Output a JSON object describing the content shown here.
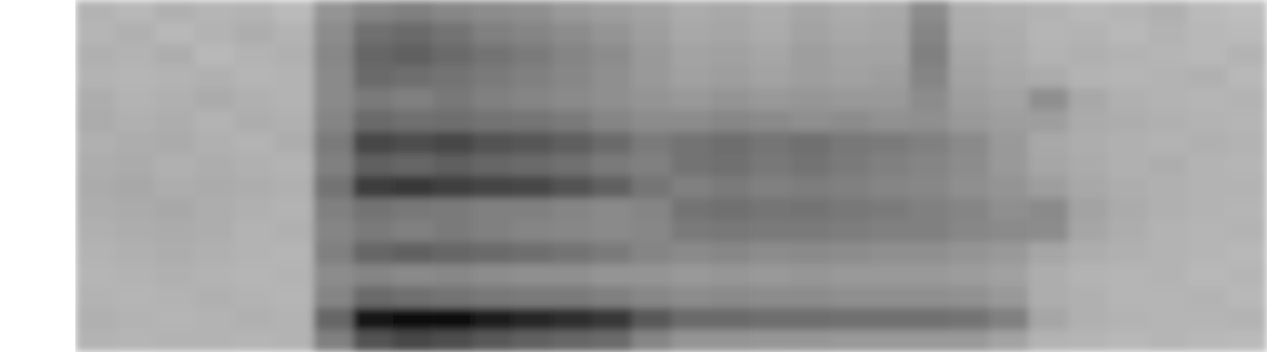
{
  "chart_data": {
    "type": "heatmap",
    "tick_labels": false,
    "color": "#000000",
    "value_range": [
      0,
      100
    ],
    "cells": [
      [
        30,
        28,
        31,
        29,
        30,
        27,
        42,
        48,
        50,
        47,
        45,
        44,
        40,
        38,
        36,
        33,
        34,
        32,
        35,
        33,
        34,
        45,
        32,
        31,
        30,
        28,
        29,
        31,
        27,
        26
      ],
      [
        29,
        31,
        28,
        30,
        32,
        30,
        45,
        56,
        58,
        55,
        50,
        48,
        45,
        42,
        38,
        34,
        35,
        33,
        36,
        34,
        35,
        48,
        33,
        32,
        29,
        30,
        28,
        30,
        28,
        27
      ],
      [
        31,
        30,
        32,
        28,
        30,
        31,
        47,
        60,
        62,
        58,
        55,
        52,
        48,
        45,
        40,
        36,
        37,
        35,
        38,
        36,
        36,
        50,
        35,
        33,
        30,
        31,
        30,
        29,
        28,
        30
      ],
      [
        30,
        29,
        30,
        31,
        29,
        30,
        46,
        58,
        57,
        55,
        52,
        50,
        47,
        44,
        40,
        37,
        38,
        36,
        38,
        37,
        38,
        48,
        36,
        34,
        33,
        30,
        29,
        30,
        31,
        28
      ],
      [
        32,
        30,
        31,
        33,
        31,
        30,
        46,
        52,
        50,
        53,
        50,
        48,
        46,
        44,
        42,
        40,
        42,
        40,
        41,
        40,
        40,
        45,
        38,
        36,
        44,
        34,
        31,
        30,
        29,
        30
      ],
      [
        33,
        31,
        32,
        30,
        32,
        31,
        48,
        58,
        56,
        57,
        55,
        54,
        52,
        48,
        45,
        45,
        47,
        46,
        44,
        45,
        43,
        44,
        40,
        38,
        38,
        33,
        32,
        31,
        30,
        29
      ],
      [
        31,
        32,
        33,
        31,
        30,
        32,
        52,
        72,
        70,
        72,
        68,
        66,
        63,
        58,
        52,
        55,
        57,
        54,
        56,
        53,
        52,
        50,
        46,
        40,
        34,
        32,
        31,
        30,
        31,
        30
      ],
      [
        32,
        33,
        31,
        32,
        31,
        30,
        50,
        62,
        60,
        63,
        60,
        58,
        56,
        52,
        50,
        55,
        56,
        53,
        55,
        52,
        50,
        48,
        45,
        40,
        35,
        33,
        31,
        32,
        30,
        29
      ],
      [
        33,
        34,
        32,
        33,
        32,
        31,
        55,
        76,
        78,
        75,
        73,
        72,
        68,
        62,
        54,
        50,
        52,
        50,
        51,
        50,
        48,
        47,
        44,
        42,
        38,
        34,
        32,
        31,
        30,
        30
      ],
      [
        32,
        33,
        34,
        32,
        31,
        30,
        50,
        55,
        53,
        52,
        50,
        50,
        48,
        46,
        48,
        55,
        56,
        54,
        55,
        53,
        52,
        50,
        48,
        44,
        46,
        36,
        33,
        31,
        30,
        29
      ],
      [
        31,
        32,
        33,
        32,
        30,
        31,
        48,
        52,
        50,
        52,
        50,
        48,
        47,
        46,
        47,
        52,
        53,
        52,
        52,
        51,
        50,
        50,
        47,
        46,
        45,
        35,
        32,
        30,
        29,
        30
      ],
      [
        30,
        31,
        32,
        31,
        30,
        29,
        50,
        60,
        62,
        60,
        58,
        57,
        55,
        52,
        48,
        46,
        47,
        45,
        46,
        45,
        44,
        44,
        42,
        40,
        35,
        32,
        31,
        30,
        29,
        28
      ],
      [
        29,
        30,
        31,
        30,
        29,
        30,
        45,
        48,
        46,
        47,
        45,
        44,
        44,
        42,
        42,
        40,
        41,
        40,
        41,
        40,
        40,
        40,
        39,
        37,
        32,
        30,
        29,
        30,
        28,
        29
      ],
      [
        30,
        29,
        30,
        31,
        30,
        29,
        48,
        58,
        56,
        55,
        53,
        52,
        52,
        50,
        47,
        45,
        46,
        45,
        45,
        44,
        44,
        44,
        43,
        40,
        32,
        31,
        29,
        29,
        30,
        28
      ],
      [
        31,
        30,
        29,
        30,
        31,
        30,
        60,
        92,
        97,
        96,
        90,
        85,
        82,
        78,
        65,
        58,
        58,
        57,
        57,
        56,
        56,
        56,
        55,
        50,
        35,
        31,
        30,
        29,
        29,
        30
      ],
      [
        30,
        29,
        30,
        30,
        29,
        30,
        50,
        68,
        72,
        70,
        65,
        62,
        60,
        58,
        48,
        42,
        42,
        41,
        41,
        40,
        40,
        40,
        40,
        36,
        30,
        29,
        28,
        29,
        28,
        27
      ]
    ]
  }
}
